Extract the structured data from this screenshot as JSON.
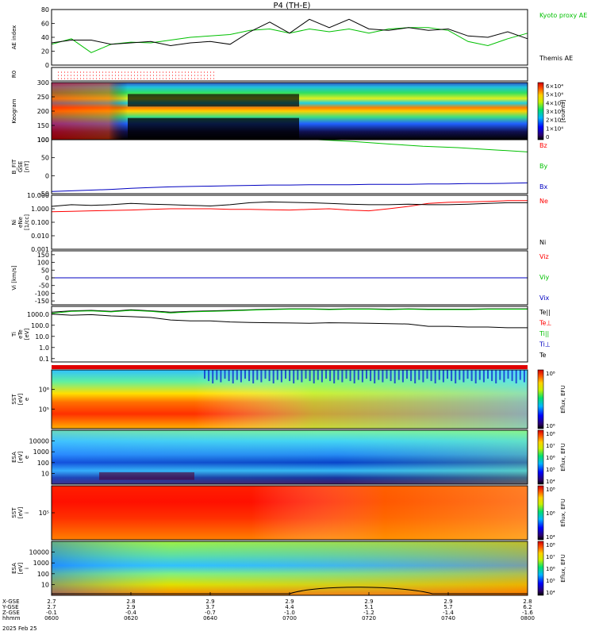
{
  "title": "P4 (TH-E)",
  "chart_data": [
    {
      "type": "line",
      "ylabel": "AE index",
      "ylim": [
        0,
        80
      ],
      "yticks": [
        "0",
        "20",
        "40",
        "60",
        "80"
      ],
      "x": [
        "0600",
        "0605",
        "0610",
        "0615",
        "0620",
        "0625",
        "0630",
        "0635",
        "0640",
        "0645",
        "0650",
        "0655",
        "0700",
        "0705",
        "0710",
        "0715",
        "0720",
        "0725",
        "0730",
        "0735",
        "0740",
        "0745",
        "0750",
        "0755",
        "0800"
      ],
      "series": [
        {
          "name": "Kyoto proxy AE",
          "color": "#00c000",
          "values": [
            30,
            38,
            18,
            30,
            33,
            32,
            36,
            40,
            42,
            44,
            50,
            52,
            46,
            52,
            48,
            52,
            46,
            52,
            54,
            54,
            50,
            34,
            28,
            38,
            46
          ]
        },
        {
          "name": "Themis AE",
          "color": "#000000",
          "values": [
            32,
            36,
            36,
            30,
            32,
            34,
            28,
            32,
            34,
            30,
            48,
            62,
            46,
            66,
            54,
            66,
            52,
            50,
            54,
            50,
            52,
            42,
            40,
            48,
            38
          ]
        }
      ]
    },
    {
      "type": "scatter",
      "ylabel": "R0",
      "marker_color": "#ff0000",
      "note_rows": 3
    },
    {
      "type": "heatmap",
      "ylabel": "Keogram",
      "ylim": [
        100,
        300
      ],
      "yticks": [
        "100",
        "150",
        "200",
        "250",
        "300"
      ],
      "colorbar": {
        "ticks": [
          "0",
          "1×10⁴",
          "2×10⁴",
          "3×10⁴",
          "4×10⁴",
          "5×10⁴",
          "6×10⁴"
        ],
        "label": "[counts]"
      }
    },
    {
      "type": "line",
      "ylabel": "B_FIT [nT]",
      "ylabel_lines": [
        "B_FIT",
        "GSE",
        "[nT]"
      ],
      "ylim": [
        -50,
        100
      ],
      "yticks": [
        "-50",
        "0",
        "50",
        "100"
      ],
      "series": [
        {
          "name": "Bz",
          "color": "#ff0000",
          "values": []
        },
        {
          "name": "By",
          "color": "#00c000",
          "values": [
            100,
            95,
            88,
            82,
            78,
            72,
            66
          ]
        },
        {
          "name": "Bx",
          "color": "#0000c0",
          "values": [
            -44,
            -42,
            -40,
            -38,
            -35,
            -33,
            -31,
            -30,
            -29,
            -28,
            -27,
            -26,
            -26,
            -25,
            -25,
            -25,
            -24,
            -24,
            -24,
            -23,
            -23,
            -22,
            -22,
            -21,
            -20
          ]
        }
      ]
    },
    {
      "type": "line",
      "ylabel": "Ni [1/cc]",
      "ylabel_lines": [
        "Ni",
        "eNe",
        "[1/cc]"
      ],
      "yscale": "log",
      "ylim": [
        0.001,
        10.0
      ],
      "yticks": [
        "0.001",
        "0.010",
        "0.100",
        "1.000",
        "10.000"
      ],
      "series": [
        {
          "name": "Ne",
          "color": "#ff0000",
          "values": [
            0.6,
            0.65,
            0.7,
            0.75,
            0.8,
            0.9,
            1.0,
            1.0,
            1.0,
            0.9,
            0.9,
            0.85,
            0.8,
            0.9,
            1.0,
            0.8,
            0.7,
            1.0,
            1.5,
            2.5,
            3.0,
            3.2,
            3.5,
            4.0,
            4.0
          ]
        },
        {
          "name": "Ni",
          "color": "#000000",
          "values": [
            1.5,
            2.0,
            1.8,
            2.0,
            2.5,
            2.2,
            2.0,
            1.8,
            1.6,
            2.0,
            2.8,
            3.2,
            3.0,
            2.8,
            2.5,
            2.2,
            2.0,
            2.0,
            2.2,
            2.0,
            2.0,
            2.2,
            2.5,
            2.8,
            2.8
          ]
        }
      ]
    },
    {
      "type": "line",
      "ylabel": "Vi [km/s]",
      "ylim": [
        -175,
        175
      ],
      "yticks": [
        "-150",
        "-100",
        "-50",
        "0",
        "50",
        "100",
        "150"
      ],
      "series": [
        {
          "name": "Viz",
          "color": "#ff0000",
          "values": [
            0,
            0,
            0,
            0,
            0,
            0,
            0,
            0,
            0,
            0,
            0,
            0,
            0,
            0,
            0,
            0,
            0,
            0,
            0,
            0,
            0,
            0,
            0,
            0,
            0
          ]
        },
        {
          "name": "Viy",
          "color": "#00c000",
          "values": [
            0,
            0,
            0,
            0,
            0,
            0,
            0,
            0,
            0,
            0,
            0,
            0,
            0,
            0,
            0,
            0,
            0,
            0,
            0,
            0,
            0,
            0,
            0,
            0,
            0
          ]
        },
        {
          "name": "Vix",
          "color": "#0000c0",
          "values": [
            0,
            0,
            0,
            0,
            0,
            0,
            0,
            0,
            0,
            0,
            0,
            0,
            0,
            0,
            0,
            0,
            0,
            0,
            0,
            0,
            0,
            0,
            0,
            0,
            0
          ]
        }
      ]
    },
    {
      "type": "line",
      "ylabel": "Ti [eV]",
      "ylabel_lines": [
        "Ti",
        "eTe",
        "[eV]"
      ],
      "yscale": "log",
      "ylim": [
        0.05,
        5000
      ],
      "yticks": [
        "0.1",
        "1.0",
        "10.0",
        "100.0",
        "1000.0"
      ],
      "series": [
        {
          "name": "Te||",
          "color": "#000000",
          "values": [
            1500,
            2000,
            2200,
            1800,
            2500,
            2000,
            1500,
            1800,
            2000,
            2200,
            2500,
            2800,
            3000,
            3000,
            2800,
            3000,
            3000,
            2800,
            3000,
            2800,
            2800,
            2800,
            3000,
            3000,
            3000
          ]
        },
        {
          "name": "Te⊥",
          "color": "#ff0000",
          "values": []
        },
        {
          "name": "Ti||",
          "color": "#00c000",
          "values": [
            1200,
            1800,
            2000,
            1600,
            2200,
            1800,
            1300,
            1600,
            1800,
            2000,
            2300,
            2600,
            2800,
            2800,
            2600,
            2800,
            2800,
            2600,
            2800,
            2600,
            2600,
            2600,
            2800,
            2800,
            2800
          ]
        },
        {
          "name": "Ti⊥",
          "color": "#0000c0",
          "values": []
        },
        {
          "name": "Te",
          "color": "#000000",
          "values": [
            1000,
            800,
            900,
            700,
            600,
            500,
            300,
            250,
            250,
            200,
            180,
            170,
            160,
            150,
            170,
            160,
            150,
            140,
            130,
            80,
            80,
            70,
            70,
            60,
            60
          ]
        }
      ]
    },
    {
      "type": "heatmap",
      "ylabel": "SST [eV]",
      "ylabel_lines": [
        "SST",
        "[eV]",
        "e"
      ],
      "yticks": [
        "10⁵",
        "10⁶"
      ],
      "colorbar": {
        "ticks": [
          "10⁶",
          "10⁸"
        ],
        "label": "Eflux, EFU"
      }
    },
    {
      "type": "heatmap",
      "ylabel": "ESA [eV]",
      "ylabel_lines": [
        "ESA",
        "[eV]",
        "e"
      ],
      "yticks": [
        "10",
        "100",
        "1000",
        "10000"
      ],
      "colorbar": {
        "ticks": [
          "10⁴",
          "10⁵",
          "10⁶",
          "10⁷",
          "10⁸"
        ],
        "label": "Eflux, EFU"
      }
    },
    {
      "type": "heatmap",
      "ylabel": "SST [eV]",
      "ylabel_lines": [
        "SST",
        "[eV]",
        "i"
      ],
      "yticks": [
        "10⁵"
      ],
      "colorbar": {
        "ticks": [
          "10⁴",
          "10⁶",
          "10⁸"
        ],
        "label": "Eflux, EFU"
      }
    },
    {
      "type": "heatmap",
      "ylabel": "ESA [eV]",
      "ylabel_lines": [
        "ESA",
        "[eV]",
        "i"
      ],
      "yticks": [
        "10",
        "100",
        "1000",
        "10000"
      ],
      "colorbar": {
        "ticks": [
          "10⁴",
          "10⁵",
          "10⁶",
          "10⁷",
          "10⁸"
        ],
        "label": "Eflux, EFU"
      }
    }
  ],
  "xaxis": {
    "row_labels": [
      "X-GSE",
      "Y-GSE",
      "Z-GSE",
      "hhmm",
      "2025 Feb 25"
    ],
    "ticks": [
      {
        "x": "2.7",
        "y": "2.7",
        "z": "-0.1",
        "time": "0600"
      },
      {
        "x": "2.8",
        "y": "2.9",
        "z": "-0.4",
        "time": "0620"
      },
      {
        "x": "2.9",
        "y": "3.7",
        "z": "-0.7",
        "time": "0640"
      },
      {
        "x": "2.9",
        "y": "4.4",
        "z": "-1.0",
        "time": "0700"
      },
      {
        "x": "2.9",
        "y": "5.1",
        "z": "-1.2",
        "time": "0720"
      },
      {
        "x": "2.9",
        "y": "5.7",
        "z": "-1.4",
        "time": "0740"
      },
      {
        "x": "2.8",
        "y": "6.2",
        "z": "-1.6",
        "time": "0800"
      }
    ]
  }
}
